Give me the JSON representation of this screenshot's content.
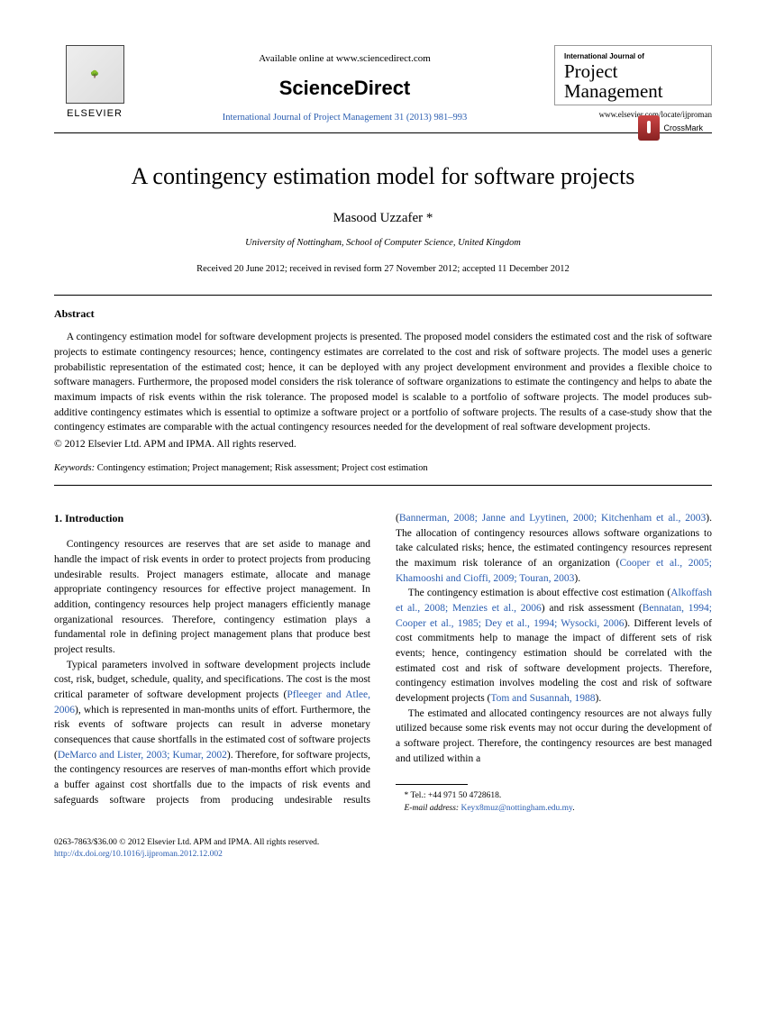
{
  "header": {
    "elsevier": "ELSEVIER",
    "available_online": "Available online at www.sciencedirect.com",
    "sciencedirect": "ScienceDirect",
    "journal_ref": "International Journal of Project Management 31 (2013) 981–993",
    "journal_intl": "International Journal of",
    "journal_title": "Project Management",
    "journal_url": "www.elsevier.com/locate/ijproman"
  },
  "crossmark": "CrossMark",
  "paper": {
    "title": "A contingency estimation model for software projects",
    "author": "Masood Uzzafer",
    "author_mark": "*",
    "affiliation": "University of Nottingham, School of Computer Science, United Kingdom",
    "dates": "Received 20 June 2012; received in revised form 27 November 2012; accepted 11 December 2012"
  },
  "abstract": {
    "heading": "Abstract",
    "text": "A contingency estimation model for software development projects is presented. The proposed model considers the estimated cost and the risk of software projects to estimate contingency resources; hence, contingency estimates are correlated to the cost and risk of software projects. The model uses a generic probabilistic representation of the estimated cost; hence, it can be deployed with any project development environment and provides a flexible choice to software managers. Furthermore, the proposed model considers the risk tolerance of software organizations to estimate the contingency and helps to abate the maximum impacts of risk events within the risk tolerance. The proposed model is scalable to a portfolio of software projects. The model produces sub-additive contingency estimates which is essential to optimize a software project or a portfolio of software projects. The results of a case-study show that the contingency estimates are comparable with the actual contingency resources needed for the development of real software development projects.",
    "copyright": "© 2012 Elsevier Ltd. APM and IPMA. All rights reserved."
  },
  "keywords": {
    "label": "Keywords:",
    "text": " Contingency estimation; Project management; Risk assessment; Project cost estimation"
  },
  "intro": {
    "heading": "1. Introduction",
    "p1": "Contingency resources are reserves that are set aside to manage and handle the impact of risk events in order to protect projects from producing undesirable results. Project managers estimate, allocate and manage appropriate contingency resources for effective project management. In addition, contingency resources help project managers efficiently manage organizational resources. Therefore, contingency estimation plays a fundamental role in defining project management plans that produce best project results.",
    "p2a": "Typical parameters involved in software development projects include cost, risk, budget, schedule, quality, and specifications. The cost is the most critical parameter of software development projects (",
    "c1": "Pfleeger and Atlee, 2006",
    "p2b": "), which is represented in man-months units of effort. Furthermore, the risk events of software projects can result in adverse monetary consequences that cause shortfalls in the estimated cost of software projects (",
    "c2": "DeMarco and Lister, 2003; ",
    "c3": "Kumar, 2002",
    "p2c": "). Therefore, for software projects, the contingency resources are reserves of man-months effort which provide a buffer against cost shortfalls due to the impacts of risk events and safeguards software projects from producing undesirable results (",
    "c4": "Bannerman, 2008; Janne and Lyytinen, 2000; Kitchenham et al., 2003",
    "p2d": "). The allocation of contingency resources allows software organizations to take calculated risks; hence, the estimated contingency resources represent the maximum risk tolerance of an organization (",
    "c5": "Cooper et al., 2005; Khamooshi and Cioffi, 2009; Touran, 2003",
    "p2e": ").",
    "p3a": "The contingency estimation is about effective cost estimation (",
    "c6": "Alkoffash et al., 2008; Menzies et al., 2006",
    "p3b": ") and risk assessment (",
    "c7": "Bennatan, 1994; Cooper et al., 1985; Dey et al., 1994; Wysocki, 2006",
    "p3c": "). Different levels of cost commitments help to manage the impact of different sets of risk events; hence, contingency estimation should be correlated with the estimated cost and risk of software development projects. Therefore, contingency estimation involves modeling the cost and risk of software development projects (",
    "c8": "Tom and Susannah, 1988",
    "p3d": ").",
    "p4": "The estimated and allocated contingency resources are not always fully utilized because some risk events may not occur during the development of a software project. Therefore, the contingency resources are best managed and utilized within a"
  },
  "footnote": {
    "tel_label": "* Tel.: ",
    "tel": "+44 971 50 4728618.",
    "email_label": "E-mail address: ",
    "email": "Keyx8muz@nottingham.edu.my"
  },
  "footer": {
    "line1": "0263-7863/$36.00 © 2012 Elsevier Ltd. APM and IPMA. All rights reserved.",
    "doi": "http://dx.doi.org/10.1016/j.ijproman.2012.12.002"
  }
}
